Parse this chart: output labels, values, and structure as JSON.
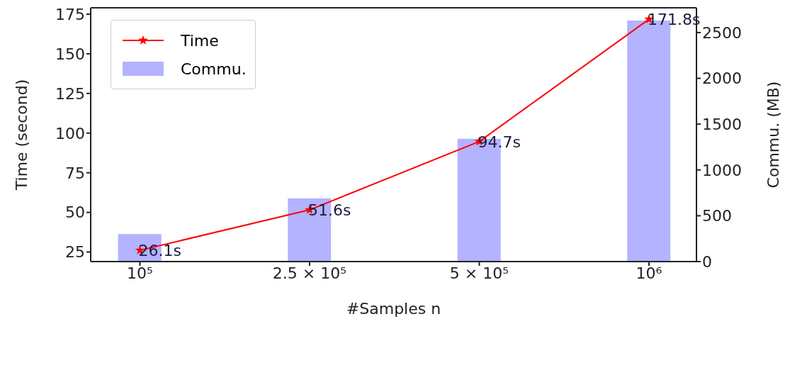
{
  "chart_data": {
    "type": "line",
    "xlabel": "#Samples n",
    "ylabel": "Time (second)",
    "y2label": "Commu. (MB)",
    "categories": [
      "10⁵",
      "2.5 × 10⁵",
      "5 × 10⁵",
      "10⁶"
    ],
    "series": [
      {
        "name": "Time",
        "color": "#ff0000",
        "marker": "star",
        "values": [
          26.1,
          51.6,
          94.7,
          171.8
        ],
        "value_labels": [
          "26.1s",
          "51.6s",
          "94.7s",
          "171.8s"
        ]
      },
      {
        "name": "Commu.",
        "type": "bar",
        "color": "#b3b3ff",
        "axis": "y2",
        "values": [
          300,
          690,
          1340,
          2630
        ]
      }
    ],
    "ylim": [
      19,
      179
    ],
    "yticks": [
      25,
      50,
      75,
      100,
      125,
      150,
      175
    ],
    "y2lim": [
      0,
      2770
    ],
    "y2ticks": [
      0,
      500,
      1000,
      1500,
      2000,
      2500
    ],
    "legend": "top left"
  }
}
